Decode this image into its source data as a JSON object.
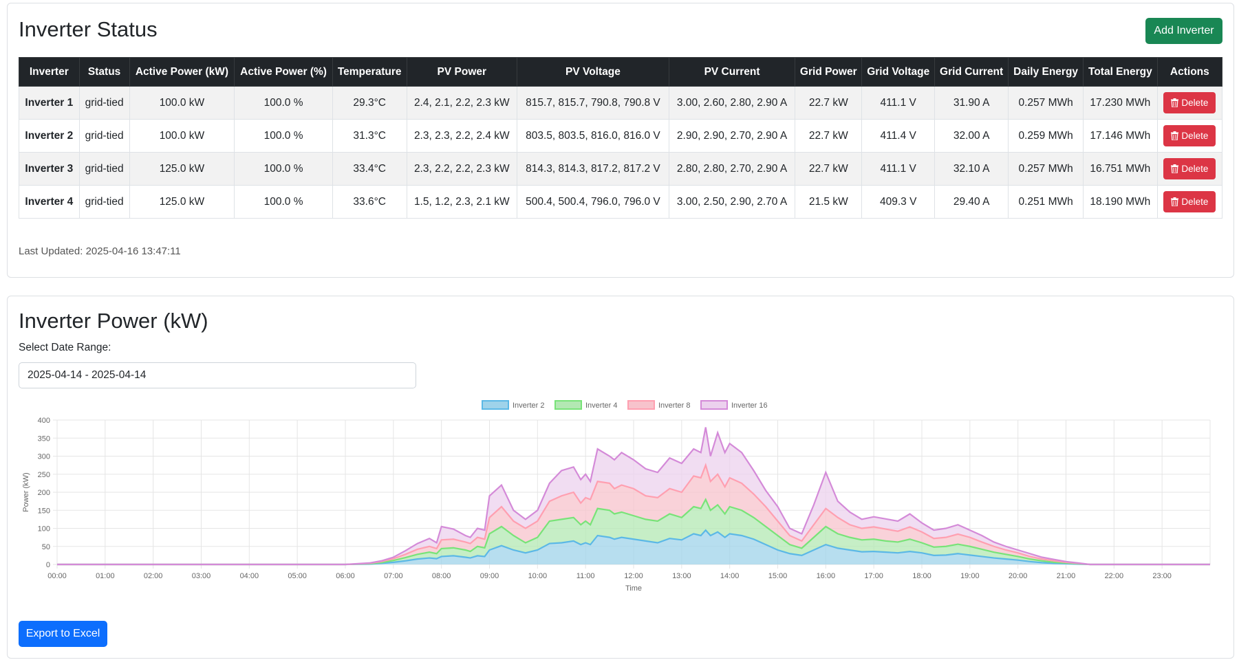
{
  "status": {
    "title": "Inverter Status",
    "add_button": "Add Inverter",
    "columns": [
      "Inverter",
      "Status",
      "Active Power (kW)",
      "Active Power (%)",
      "Temperature",
      "PV Power",
      "PV Voltage",
      "PV Current",
      "Grid Power",
      "Grid Voltage",
      "Grid Current",
      "Daily Energy",
      "Total Energy",
      "Actions"
    ],
    "rows": [
      [
        "Inverter 1",
        "grid-tied",
        "100.0 kW",
        "100.0 %",
        "29.3°C",
        "2.4, 2.1, 2.2, 2.3 kW",
        "815.7, 815.7, 790.8, 790.8 V",
        "3.00, 2.60, 2.80, 2.90 A",
        "22.7 kW",
        "411.1 V",
        "31.90 A",
        "0.257 MWh",
        "17.230 MWh"
      ],
      [
        "Inverter 2",
        "grid-tied",
        "100.0 kW",
        "100.0 %",
        "31.3°C",
        "2.3, 2.3, 2.2, 2.4 kW",
        "803.5, 803.5, 816.0, 816.0 V",
        "2.90, 2.90, 2.70, 2.90 A",
        "22.7 kW",
        "411.4 V",
        "32.00 A",
        "0.259 MWh",
        "17.146 MWh"
      ],
      [
        "Inverter 3",
        "grid-tied",
        "125.0 kW",
        "100.0 %",
        "33.4°C",
        "2.3, 2.2, 2.2, 2.3 kW",
        "814.3, 814.3, 817.2, 817.2 V",
        "2.80, 2.80, 2.70, 2.90 A",
        "22.7 kW",
        "411.1 V",
        "32.10 A",
        "0.257 MWh",
        "16.751 MWh"
      ],
      [
        "Inverter 4",
        "grid-tied",
        "125.0 kW",
        "100.0 %",
        "33.6°C",
        "1.5, 1.2, 2.3, 2.1 kW",
        "500.4, 500.4, 796.0, 796.0 V",
        "3.00, 2.50, 2.90, 2.70 A",
        "21.5 kW",
        "409.3 V",
        "29.40 A",
        "0.251 MWh",
        "18.190 MWh"
      ]
    ],
    "delete_label": "Delete",
    "last_updated": "Last Updated: 2025-04-16 13:47:11"
  },
  "power": {
    "title": "Inverter Power (kW)",
    "range_label": "Select Date Range:",
    "range_value": "2025-04-14 - 2025-04-14",
    "export_button": "Export to Excel"
  },
  "chart_data": {
    "type": "area",
    "stacked": true,
    "xlabel": "Time",
    "ylabel": "Power (kW)",
    "ylim": [
      0,
      400
    ],
    "yticks": [
      0,
      50,
      100,
      150,
      200,
      250,
      300,
      350,
      400
    ],
    "xticks": [
      "00:00",
      "01:00",
      "02:00",
      "03:00",
      "04:00",
      "05:00",
      "06:00",
      "07:00",
      "08:00",
      "09:00",
      "10:00",
      "11:00",
      "12:00",
      "13:00",
      "14:00",
      "15:00",
      "16:00",
      "17:00",
      "18:00",
      "19:00",
      "20:00",
      "21:00",
      "22:00",
      "23:00"
    ],
    "xlim_hours": [
      0,
      24
    ],
    "legend_position": "top",
    "grid": true,
    "series": [
      {
        "name": "Inverter 2",
        "line_color": "#5bb8e6",
        "fill_color": "#9fd3ea"
      },
      {
        "name": "Inverter 4",
        "line_color": "#78e378",
        "fill_color": "#b3e8b3"
      },
      {
        "name": "Inverter 8",
        "line_color": "#ff9fb0",
        "fill_color": "#f7c3cc"
      },
      {
        "name": "Inverter 16",
        "line_color": "#d48ad8",
        "fill_color": "#ecd1ee"
      }
    ],
    "stacked_totals": {
      "note_points_hour_cumulative": [
        [
          0,
          [
            0,
            0,
            0,
            0
          ]
        ],
        [
          6.0,
          [
            0,
            0,
            0,
            0
          ]
        ],
        [
          6.5,
          [
            1,
            2,
            3,
            4
          ]
        ],
        [
          6.75,
          [
            3,
            5,
            8,
            10
          ]
        ],
        [
          7.0,
          [
            6,
            11,
            16,
            20
          ]
        ],
        [
          7.25,
          [
            10,
            19,
            28,
            38
          ]
        ],
        [
          7.5,
          [
            15,
            28,
            42,
            58
          ]
        ],
        [
          7.75,
          [
            18,
            34,
            50,
            72
          ]
        ],
        [
          7.9,
          [
            16,
            30,
            44,
            60
          ]
        ],
        [
          8.0,
          [
            22,
            44,
            68,
            105
          ]
        ],
        [
          8.25,
          [
            24,
            46,
            70,
            98
          ]
        ],
        [
          8.5,
          [
            20,
            40,
            62,
            80
          ]
        ],
        [
          8.6,
          [
            18,
            36,
            58,
            75
          ]
        ],
        [
          8.75,
          [
            24,
            50,
            75,
            100
          ]
        ],
        [
          8.9,
          [
            22,
            46,
            70,
            95
          ]
        ],
        [
          9.0,
          [
            40,
            85,
            130,
            190
          ]
        ],
        [
          9.25,
          [
            52,
            105,
            160,
            220
          ]
        ],
        [
          9.5,
          [
            40,
            80,
            120,
            150
          ]
        ],
        [
          9.75,
          [
            32,
            60,
            100,
            125
          ]
        ],
        [
          10.0,
          [
            40,
            75,
            120,
            150
          ]
        ],
        [
          10.25,
          [
            58,
            120,
            175,
            225
          ]
        ],
        [
          10.5,
          [
            60,
            125,
            190,
            260
          ]
        ],
        [
          10.75,
          [
            65,
            130,
            200,
            270
          ]
        ],
        [
          10.9,
          [
            55,
            110,
            170,
            235
          ]
        ],
        [
          11.0,
          [
            60,
            120,
            185,
            250
          ]
        ],
        [
          11.1,
          [
            55,
            110,
            180,
            230
          ]
        ],
        [
          11.25,
          [
            80,
            155,
            230,
            320
          ]
        ],
        [
          11.5,
          [
            75,
            150,
            225,
            300
          ]
        ],
        [
          11.6,
          [
            70,
            140,
            210,
            290
          ]
        ],
        [
          11.75,
          [
            75,
            145,
            220,
            310
          ]
        ],
        [
          12.0,
          [
            70,
            135,
            210,
            290
          ]
        ],
        [
          12.25,
          [
            65,
            125,
            190,
            265
          ]
        ],
        [
          12.5,
          [
            60,
            120,
            185,
            255
          ]
        ],
        [
          12.75,
          [
            72,
            140,
            210,
            295
          ]
        ],
        [
          13.0,
          [
            68,
            130,
            200,
            280
          ]
        ],
        [
          13.25,
          [
            85,
            160,
            245,
            320
          ]
        ],
        [
          13.4,
          [
            80,
            155,
            240,
            310
          ]
        ],
        [
          13.5,
          [
            95,
            180,
            275,
            380
          ]
        ],
        [
          13.6,
          [
            80,
            150,
            230,
            300
          ]
        ],
        [
          13.75,
          [
            90,
            165,
            250,
            365
          ]
        ],
        [
          13.9,
          [
            75,
            140,
            215,
            310
          ]
        ],
        [
          14.0,
          [
            85,
            160,
            240,
            335
          ]
        ],
        [
          14.25,
          [
            80,
            150,
            225,
            310
          ]
        ],
        [
          14.5,
          [
            70,
            130,
            195,
            260
          ]
        ],
        [
          14.75,
          [
            55,
            105,
            160,
            205
          ]
        ],
        [
          15.0,
          [
            40,
            80,
            120,
            160
          ]
        ],
        [
          15.25,
          [
            30,
            55,
            80,
            100
          ]
        ],
        [
          15.5,
          [
            25,
            45,
            65,
            85
          ]
        ],
        [
          15.75,
          [
            40,
            75,
            110,
            165
          ]
        ],
        [
          16.0,
          [
            55,
            105,
            155,
            255
          ]
        ],
        [
          16.25,
          [
            45,
            85,
            130,
            175
          ]
        ],
        [
          16.5,
          [
            40,
            75,
            110,
            145
          ]
        ],
        [
          16.75,
          [
            35,
            68,
            100,
            125
          ]
        ],
        [
          17.0,
          [
            36,
            70,
            104,
            132
          ]
        ],
        [
          17.25,
          [
            34,
            65,
            98,
            126
          ]
        ],
        [
          17.5,
          [
            32,
            62,
            92,
            120
          ]
        ],
        [
          17.75,
          [
            36,
            70,
            104,
            140
          ]
        ],
        [
          18.0,
          [
            32,
            60,
            90,
            115
          ]
        ],
        [
          18.25,
          [
            25,
            48,
            72,
            95
          ]
        ],
        [
          18.5,
          [
            26,
            50,
            75,
            100
          ]
        ],
        [
          18.75,
          [
            30,
            56,
            84,
            110
          ]
        ],
        [
          19.0,
          [
            26,
            50,
            75,
            95
          ]
        ],
        [
          19.25,
          [
            22,
            42,
            62,
            80
          ]
        ],
        [
          19.5,
          [
            18,
            34,
            50,
            62
          ]
        ],
        [
          19.75,
          [
            15,
            28,
            40,
            50
          ]
        ],
        [
          20.0,
          [
            12,
            22,
            32,
            40
          ]
        ],
        [
          20.25,
          [
            8,
            15,
            22,
            30
          ]
        ],
        [
          20.5,
          [
            5,
            10,
            15,
            20
          ]
        ],
        [
          20.75,
          [
            3,
            6,
            10,
            14
          ]
        ],
        [
          21.0,
          [
            2,
            4,
            6,
            8
          ]
        ],
        [
          21.25,
          [
            1,
            2,
            3,
            4
          ]
        ],
        [
          21.5,
          [
            0,
            0,
            0,
            0
          ]
        ],
        [
          24,
          [
            0,
            0,
            0,
            0
          ]
        ]
      ]
    }
  }
}
